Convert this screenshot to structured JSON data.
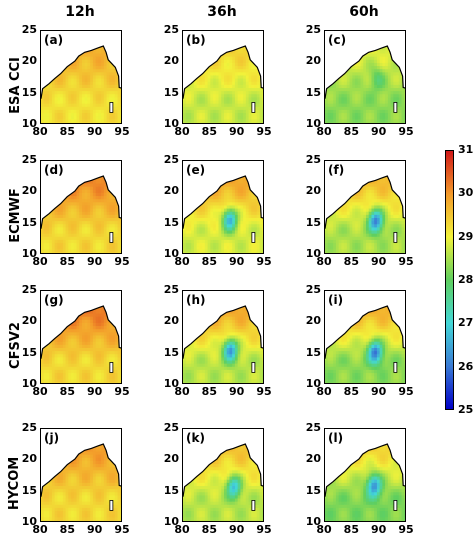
{
  "chart_data": {
    "type": "heatmap",
    "description_variable": "",
    "columns": [
      "12h",
      "36h",
      "60h"
    ],
    "rows": [
      "ESA CCI",
      "ECMWF",
      "CFSV2",
      "HYCOM"
    ],
    "xticks": [
      "80",
      "85",
      "90",
      "95"
    ],
    "yticks": [
      "10",
      "15",
      "20",
      "25"
    ],
    "xlim": [
      80,
      95
    ],
    "ylim": [
      10,
      25
    ],
    "colorbar": {
      "ticks": [
        "25",
        "26",
        "27",
        "28",
        "29",
        "30",
        "31"
      ],
      "range": [
        25,
        31
      ],
      "colors": [
        "#0000c8",
        "#3a7bd5",
        "#43d7d7",
        "#5fcf5f",
        "#f2f23a",
        "#f39a2a",
        "#d01818"
      ]
    },
    "panels": [
      {
        "label": "(a)",
        "row": "ESA CCI",
        "col": "12h",
        "base": 29.2,
        "north": 29.8,
        "cold": null
      },
      {
        "label": "(b)",
        "row": "ESA CCI",
        "col": "36h",
        "base": 28.7,
        "north": 29.4,
        "cold": null
      },
      {
        "label": "(c)",
        "row": "ESA CCI",
        "col": "60h",
        "base": 28.3,
        "north": 28.9,
        "cold": {
          "lon": 89.5,
          "lat": 17.5,
          "value": 27.6
        }
      },
      {
        "label": "(d)",
        "row": "ECMWF",
        "col": "12h",
        "base": 29.3,
        "north": 30.2,
        "cold": null
      },
      {
        "label": "(e)",
        "row": "ECMWF",
        "col": "36h",
        "base": 28.8,
        "north": 29.9,
        "cold": {
          "lon": 88.6,
          "lat": 15.8,
          "value": 26.3
        }
      },
      {
        "label": "(f)",
        "row": "ECMWF",
        "col": "60h",
        "base": 28.5,
        "north": 29.7,
        "cold": {
          "lon": 89.3,
          "lat": 15.6,
          "value": 25.8
        }
      },
      {
        "label": "(g)",
        "row": "CFSV2",
        "col": "12h",
        "base": 29.3,
        "north": 30.3,
        "cold": null
      },
      {
        "label": "(h)",
        "row": "CFSV2",
        "col": "36h",
        "base": 28.6,
        "north": 29.9,
        "cold": {
          "lon": 88.7,
          "lat": 15.7,
          "value": 26.0
        }
      },
      {
        "label": "(i)",
        "row": "CFSV2",
        "col": "60h",
        "base": 28.3,
        "north": 29.8,
        "cold": {
          "lon": 89.2,
          "lat": 15.4,
          "value": 25.7
        }
      },
      {
        "label": "(j)",
        "row": "HYCOM",
        "col": "12h",
        "base": 29.3,
        "north": 30.0,
        "cold": null
      },
      {
        "label": "(k)",
        "row": "HYCOM",
        "col": "36h",
        "base": 28.6,
        "north": 29.6,
        "cold": {
          "lon": 89.3,
          "lat": 15.9,
          "value": 26.5
        }
      },
      {
        "label": "(l)",
        "row": "HYCOM",
        "col": "60h",
        "base": 28.2,
        "north": 29.4,
        "cold": {
          "lon": 89.0,
          "lat": 16.1,
          "value": 25.9
        }
      }
    ]
  }
}
